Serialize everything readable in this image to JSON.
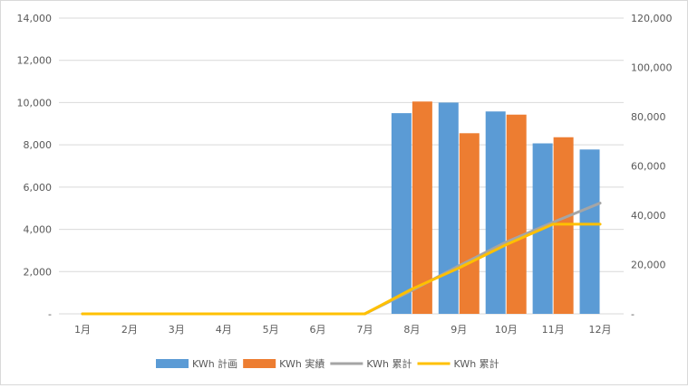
{
  "chart_data": {
    "type": "bar",
    "categories": [
      "1月",
      "2月",
      "3月",
      "4月",
      "5月",
      "6月",
      "7月",
      "8月",
      "9月",
      "10月",
      "11月",
      "12月"
    ],
    "series": [
      {
        "name": "KWh 計画",
        "type": "bar",
        "axis": "left",
        "color": "#5b9bd5",
        "values": [
          null,
          null,
          null,
          null,
          null,
          null,
          null,
          9500,
          10000,
          9580,
          8070,
          7780
        ]
      },
      {
        "name": "KWh 実績",
        "type": "bar",
        "axis": "left",
        "color": "#ed7d31",
        "values": [
          null,
          null,
          null,
          null,
          null,
          null,
          null,
          10050,
          8550,
          9430,
          8360,
          null
        ]
      },
      {
        "name": "KWh 累計",
        "type": "line",
        "axis": "right",
        "color": "#a5a5a5",
        "values": [
          0,
          0,
          0,
          0,
          0,
          0,
          0,
          9500,
          19500,
          29080,
          37150,
          44930
        ]
      },
      {
        "name": "KWh 累計",
        "type": "line",
        "axis": "right",
        "color": "#ffc000",
        "values": [
          0,
          0,
          0,
          0,
          0,
          0,
          0,
          10050,
          18600,
          28030,
          36390,
          36390
        ]
      }
    ],
    "y_left": {
      "min": 0,
      "max": 14000,
      "ticks": [
        "-",
        "2,000",
        "4,000",
        "6,000",
        "8,000",
        "10,000",
        "12,000",
        "14,000"
      ]
    },
    "y_right": {
      "min": 0,
      "max": 120000,
      "ticks": [
        "-",
        "20,000",
        "40,000",
        "60,000",
        "80,000",
        "100,000",
        "120,000"
      ]
    },
    "grid": true,
    "legend_position": "bottom"
  }
}
